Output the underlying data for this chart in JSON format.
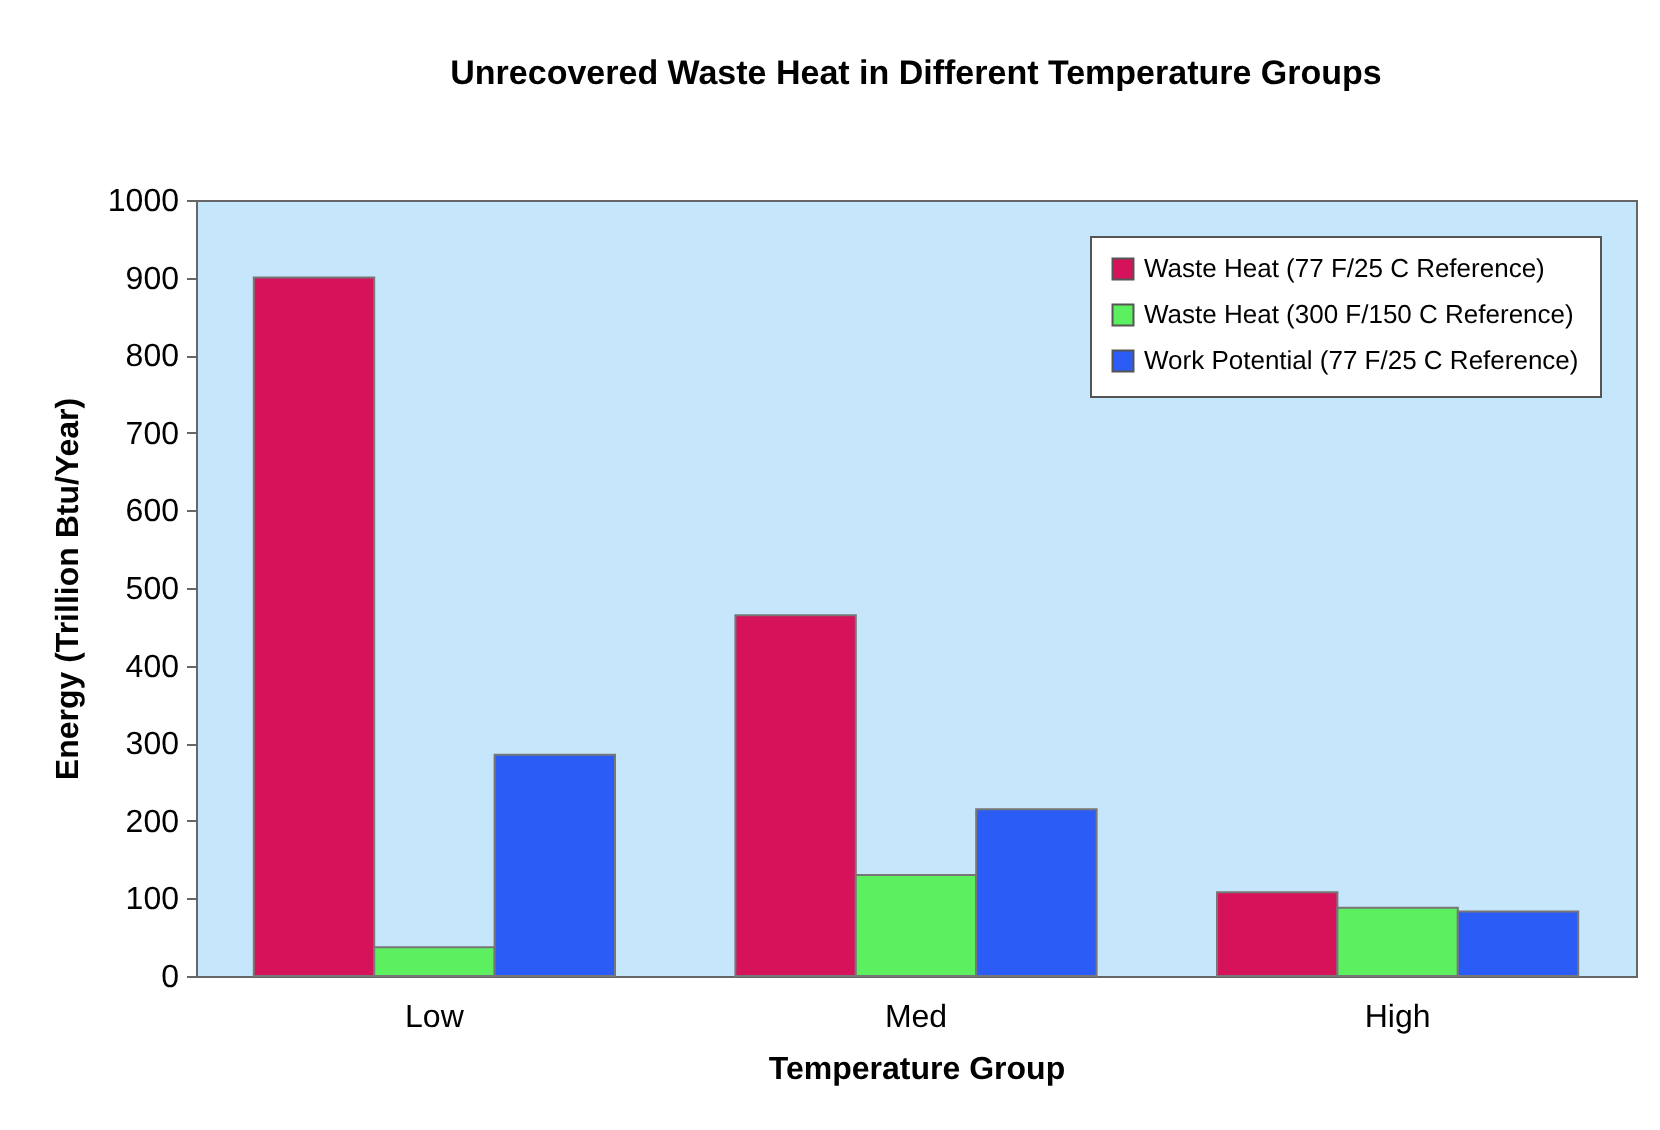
{
  "chart_data": {
    "type": "bar",
    "title": "Unrecovered Waste Heat in Different Temperature Groups",
    "xlabel": "Temperature Group",
    "ylabel": "Energy (Trillion Btu/Year)",
    "categories": [
      "Low",
      "Med",
      "High"
    ],
    "series": [
      {
        "name": "Waste Heat (77 F/25 C Reference)",
        "color": "#d6135a",
        "values": [
          900,
          465,
          108
        ]
      },
      {
        "name": "Waste Heat (300 F/150 C Reference)",
        "color": "#5cf060",
        "values": [
          37,
          130,
          88
        ]
      },
      {
        "name": "Work Potential (77 F/25 C Reference)",
        "color": "#2b5cf5",
        "values": [
          285,
          215,
          83
        ]
      }
    ],
    "ylim": [
      0,
      1000
    ],
    "yticks": [
      0,
      100,
      200,
      300,
      400,
      500,
      600,
      700,
      800,
      900,
      1000
    ],
    "legend": "top right"
  }
}
